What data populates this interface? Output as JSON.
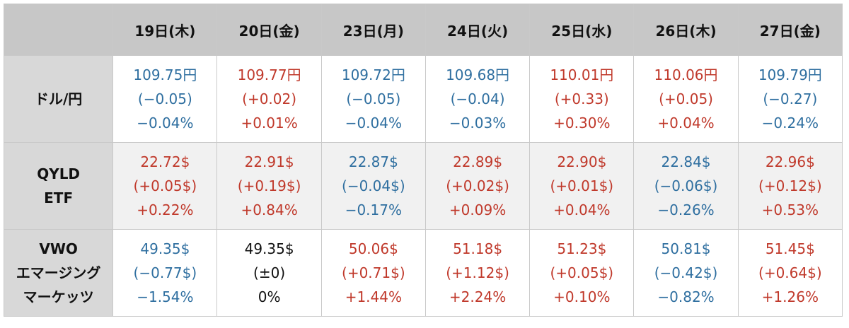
{
  "header": {
    "corner": "",
    "dates": [
      "19日(木)",
      "20日(金)",
      "23日(月)",
      "24日(火)",
      "25日(水)",
      "26日(木)",
      "27日(金)"
    ]
  },
  "rows": [
    {
      "label_lines": [
        "ドル/円"
      ],
      "cells": [
        {
          "trend": "down",
          "lines": [
            "109.75円",
            "(−0.05)",
            "−0.04%"
          ]
        },
        {
          "trend": "up",
          "lines": [
            "109.77円",
            "(+0.02)",
            "+0.01%"
          ]
        },
        {
          "trend": "down",
          "lines": [
            "109.72円",
            "(−0.05)",
            "−0.04%"
          ]
        },
        {
          "trend": "down",
          "lines": [
            "109.68円",
            "(−0.04)",
            "−0.03%"
          ]
        },
        {
          "trend": "up",
          "lines": [
            "110.01円",
            "(+0.33)",
            "+0.30%"
          ]
        },
        {
          "trend": "up",
          "lines": [
            "110.06円",
            "(+0.05)",
            "+0.04%"
          ]
        },
        {
          "trend": "down",
          "lines": [
            "109.79円",
            "(−0.27)",
            "−0.24%"
          ]
        }
      ]
    },
    {
      "label_lines": [
        "QYLD",
        "ETF"
      ],
      "cells": [
        {
          "trend": "up",
          "lines": [
            "22.72$",
            "(+0.05$)",
            "+0.22%"
          ]
        },
        {
          "trend": "up",
          "lines": [
            "22.91$",
            "(+0.19$)",
            "+0.84%"
          ]
        },
        {
          "trend": "down",
          "lines": [
            "22.87$",
            "(−0.04$)",
            "−0.17%"
          ]
        },
        {
          "trend": "up",
          "lines": [
            "22.89$",
            "(+0.02$)",
            "+0.09%"
          ]
        },
        {
          "trend": "up",
          "lines": [
            "22.90$",
            "(+0.01$)",
            "+0.04%"
          ]
        },
        {
          "trend": "down",
          "lines": [
            "22.84$",
            "(−0.06$)",
            "−0.26%"
          ]
        },
        {
          "trend": "up",
          "lines": [
            "22.96$",
            "(+0.12$)",
            "+0.53%"
          ]
        }
      ]
    },
    {
      "label_lines": [
        "VWO",
        "エマージング",
        "マーケッツ"
      ],
      "cells": [
        {
          "trend": "down",
          "lines": [
            "49.35$",
            "(−0.77$)",
            "−1.54%"
          ]
        },
        {
          "trend": "flat",
          "lines": [
            "49.35$",
            "(±0)",
            "0%"
          ]
        },
        {
          "trend": "up",
          "lines": [
            "50.06$",
            "(+0.71$)",
            "+1.44%"
          ]
        },
        {
          "trend": "up",
          "lines": [
            "51.18$",
            "(+1.12$)",
            "+2.24%"
          ]
        },
        {
          "trend": "up",
          "lines": [
            "51.23$",
            "(+0.05$)",
            "+0.10%"
          ]
        },
        {
          "trend": "down",
          "lines": [
            "50.81$",
            "(−0.42$)",
            "−0.82%"
          ]
        },
        {
          "trend": "up",
          "lines": [
            "51.45$",
            "(+0.64$)",
            "+1.26%"
          ]
        }
      ]
    }
  ],
  "colors": {
    "up": "#c0392b",
    "down": "#2f6fa0",
    "flat": "#111111",
    "header_bg": "#c7c7c7",
    "row_header_bg": "#d8d8d8"
  }
}
